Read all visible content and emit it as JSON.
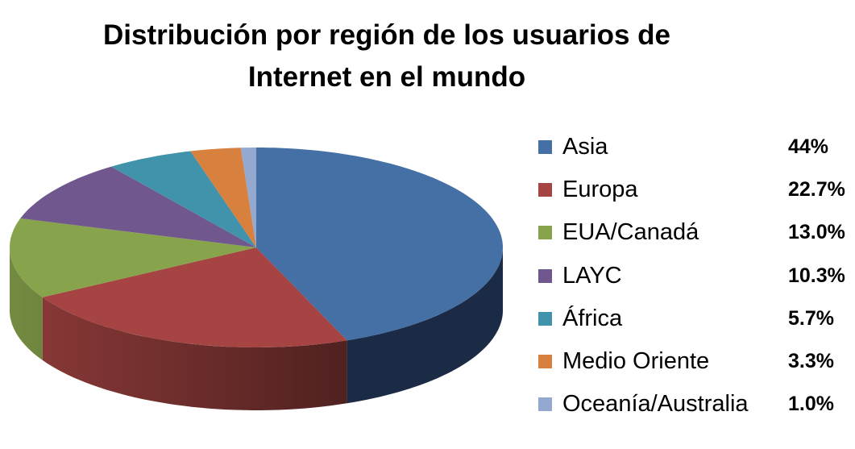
{
  "chart_data": {
    "type": "pie",
    "style": "3d",
    "title": "Distribución por región de los usuarios de Internet  en el mundo",
    "title_lines": [
      "Distribución por región de los usuarios de",
      "Internet  en el mundo"
    ],
    "categories": [
      "Asia",
      "Europa",
      "EUA/Canadá",
      "LAYC",
      "África",
      "Medio Oriente",
      "Oceanía/Australia"
    ],
    "values": [
      44,
      22.7,
      13.0,
      10.3,
      5.7,
      3.3,
      1.0
    ],
    "value_labels": [
      "44%",
      "22.7%",
      "13.0%",
      "10.3%",
      "5.7%",
      "3.3%",
      "1.0%"
    ],
    "colors": [
      "#4470A5",
      "#A54442",
      "#87A34C",
      "#70578D",
      "#4193AC",
      "#D8803E",
      "#94A9D0"
    ],
    "side_colors": [
      "#1B2B45",
      "#6B2A28",
      "#6E8A3A",
      "#4E3D63",
      "#2D6A7C",
      "#9C5A2A",
      "#6A7B99"
    ],
    "legend_position": "right",
    "xlabel": "",
    "ylabel": ""
  },
  "legend": {
    "items": [
      {
        "label": "Asia",
        "value": "44%",
        "color": "#4470A5"
      },
      {
        "label": "Europa",
        "value": "22.7%",
        "color": "#A54442"
      },
      {
        "label": "EUA/Canadá",
        "value": "13.0%",
        "color": "#87A34C"
      },
      {
        "label": "LAYC",
        "value": "10.3%",
        "color": "#70578D"
      },
      {
        "label": "África",
        "value": "5.7%",
        "color": "#4193AC"
      },
      {
        "label": "Medio Oriente",
        "value": "3.3%",
        "color": "#D8803E"
      },
      {
        "label": "Oceanía/Australia",
        "value": "1.0%",
        "color": "#94A9D0"
      }
    ]
  }
}
